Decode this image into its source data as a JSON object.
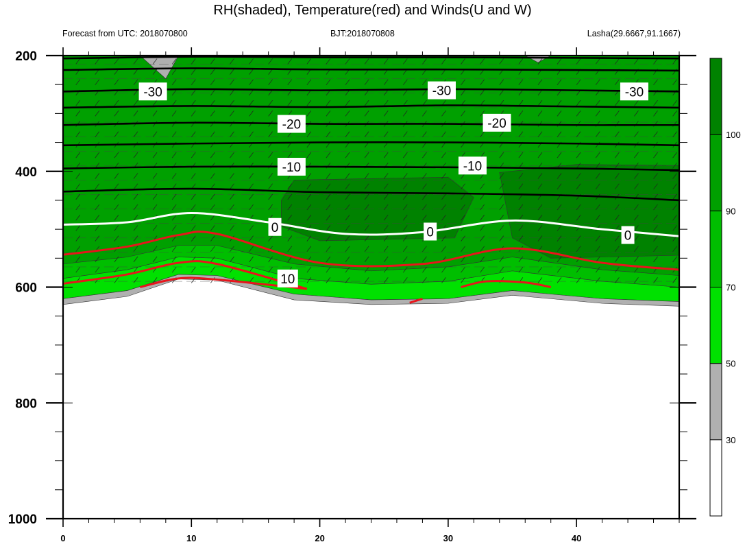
{
  "title": "RH(shaded), Temperature(red) and Winds(U and W)",
  "subtitle_left": "Forecast from UTC: 2018070800",
  "subtitle_center": "BJT:2018070808",
  "subtitle_right": "Lasha(29.6667,91.1667)",
  "chart_data": {
    "type": "contour",
    "x_ticks": [
      0,
      10,
      20,
      30,
      40
    ],
    "xlim": [
      0,
      48
    ],
    "y_ticks": [
      200,
      400,
      600,
      800,
      1000
    ],
    "ylim": [
      200,
      1000
    ],
    "y_inverted": true,
    "colorbar": {
      "levels": [
        30,
        50,
        70,
        90,
        100
      ],
      "colors": [
        "#ffffff",
        "#b0b0b0",
        "#00e100",
        "#00be00",
        "#00a000",
        "#008200"
      ]
    },
    "temperature_contour_labels": [
      "-30",
      "-30",
      "-30",
      "-20",
      "-20",
      "-10",
      "-10",
      "0",
      "0",
      "0",
      "10"
    ],
    "temperature_lines": [
      {
        "level": -40,
        "points": [
          [
            0,
            205
          ],
          [
            10,
            202
          ],
          [
            20,
            203
          ],
          [
            30,
            203
          ],
          [
            40,
            204
          ],
          [
            48,
            205
          ]
        ]
      },
      {
        "level": -35,
        "points": [
          [
            0,
            225
          ],
          [
            10,
            222
          ],
          [
            20,
            224
          ],
          [
            30,
            224
          ],
          [
            40,
            225
          ],
          [
            48,
            226
          ]
        ]
      },
      {
        "level": -30,
        "points": [
          [
            0,
            262
          ],
          [
            10,
            258
          ],
          [
            20,
            260
          ],
          [
            30,
            258
          ],
          [
            40,
            260
          ],
          [
            48,
            262
          ]
        ]
      },
      {
        "level": -25,
        "points": [
          [
            0,
            290
          ],
          [
            10,
            287
          ],
          [
            20,
            289
          ],
          [
            30,
            286
          ],
          [
            40,
            288
          ],
          [
            48,
            290
          ]
        ]
      },
      {
        "level": -20,
        "points": [
          [
            0,
            320
          ],
          [
            10,
            316
          ],
          [
            20,
            318
          ],
          [
            30,
            318
          ],
          [
            40,
            320
          ],
          [
            48,
            320
          ]
        ]
      },
      {
        "level": -15,
        "points": [
          [
            0,
            355
          ],
          [
            10,
            352
          ],
          [
            20,
            350
          ],
          [
            30,
            350
          ],
          [
            40,
            352
          ],
          [
            48,
            355
          ]
        ]
      },
      {
        "level": -10,
        "points": [
          [
            0,
            395
          ],
          [
            10,
            392
          ],
          [
            20,
            392
          ],
          [
            30,
            393
          ],
          [
            40,
            395
          ],
          [
            48,
            398
          ]
        ]
      },
      {
        "level": -5,
        "points": [
          [
            0,
            435
          ],
          [
            10,
            430
          ],
          [
            20,
            436
          ],
          [
            30,
            438
          ],
          [
            40,
            442
          ],
          [
            48,
            450
          ]
        ]
      },
      {
        "level": 0,
        "points": [
          [
            0,
            492
          ],
          [
            5,
            488
          ],
          [
            10,
            472
          ],
          [
            16,
            488
          ],
          [
            22,
            508
          ],
          [
            28,
            505
          ],
          [
            35,
            485
          ],
          [
            42,
            500
          ],
          [
            48,
            512
          ]
        ]
      },
      {
        "level": 5,
        "points": [
          [
            0,
            544
          ],
          [
            5,
            530
          ],
          [
            9,
            510
          ],
          [
            12,
            508
          ],
          [
            20,
            558
          ],
          [
            28,
            560
          ],
          [
            35,
            533
          ],
          [
            42,
            558
          ],
          [
            48,
            570
          ]
        ]
      },
      {
        "level": 10,
        "points": [
          [
            0,
            594
          ],
          [
            5,
            578
          ],
          [
            9,
            558
          ],
          [
            12,
            560
          ],
          [
            19,
            603
          ]
        ]
      },
      {
        "level": 15,
        "points": [
          [
            6,
            600
          ],
          [
            9,
            585
          ],
          [
            12,
            587
          ],
          [
            19,
            603
          ]
        ]
      },
      {
        "level": 15,
        "points": [
          [
            27,
            627
          ],
          [
            28,
            620
          ]
        ]
      },
      {
        "level": 15,
        "points": [
          [
            31,
            600
          ],
          [
            33,
            590
          ],
          [
            36,
            592
          ],
          [
            38,
            600
          ]
        ]
      }
    ],
    "rh_regions": [
      {
        "level": 90,
        "points": [
          [
            17,
            450
          ],
          [
            18,
            415
          ],
          [
            30,
            410
          ],
          [
            32,
            445
          ],
          [
            30.5,
            515
          ],
          [
            20,
            520
          ],
          [
            17,
            495
          ]
        ]
      },
      {
        "level": 90,
        "points": [
          [
            34,
            402
          ],
          [
            40,
            388
          ],
          [
            48,
            390
          ],
          [
            48,
            545
          ],
          [
            38,
            550
          ],
          [
            35,
            515
          ]
        ]
      },
      {
        "level": 30,
        "points": [
          [
            6,
            200
          ],
          [
            9,
            200
          ],
          [
            8,
            240
          ]
        ]
      },
      {
        "level": 30,
        "points": [
          [
            36,
            200
          ],
          [
            38,
            200
          ],
          [
            37,
            212
          ]
        ]
      }
    ]
  }
}
